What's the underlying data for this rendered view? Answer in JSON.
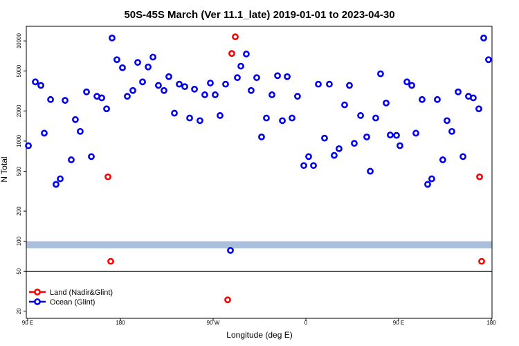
{
  "chart_data": {
    "type": "scatter",
    "title": "50S-45S March (Ver 11.1_late)   2019-01-01 to 2023-04-30",
    "x_label": "Longitude (deg E)",
    "y_label": "N Total",
    "log_y": true,
    "legend": "bottom-left",
    "xlim": [
      90,
      540
    ],
    "ylim": [
      17,
      14000
    ],
    "xticks": [
      {
        "value": 90,
        "label": "90 E"
      },
      180,
      {
        "value": 270,
        "label": "90 W"
      },
      {
        "value": 360,
        "label": "0"
      },
      {
        "value": 450,
        "label": "90 E"
      },
      {
        "value": 540,
        "label": "180"
      }
    ],
    "yticks": [
      20,
      50,
      100,
      200,
      500,
      1000,
      2000,
      5000,
      10000
    ],
    "band": {
      "from": 85,
      "to": 100,
      "color": "#a9bfdc"
    },
    "hline": 50,
    "series": [
      {
        "name": "Land (Nadir&Glint)",
        "color": "#ff0000",
        "x": [
          167.9,
          170.6,
          284.1,
          288.1,
          291.5,
          528.6,
          530.6
        ],
        "values": [
          440,
          63,
          26,
          7500,
          11000,
          440,
          63
        ]
      },
      {
        "name": "Ocean (Glint)",
        "color": "#0000ee",
        "x": [
          90.7,
          97.4,
          102.8,
          106.1,
          112.2,
          117.5,
          121.6,
          126.3,
          132.3,
          136.3,
          141.0,
          147.1,
          151.8,
          157.2,
          161.9,
          166.6,
          171.9,
          176.6,
          182.0,
          186.7,
          192.1,
          196.8,
          201.5,
          206.9,
          211.6,
          216.9,
          222.3,
          227.0,
          232.4,
          237.1,
          242.5,
          247.2,
          251.9,
          257.2,
          261.9,
          267.3,
          272.0,
          276.7,
          282.1,
          286.8,
          293.5,
          296.9,
          302.2,
          306.9,
          312.3,
          317.0,
          321.7,
          327.1,
          332.5,
          337.2,
          341.9,
          346.6,
          351.9,
          358.0,
          362.7,
          367.4,
          372.1,
          378.1,
          382.8,
          387.5,
          392.2,
          397.6,
          402.3,
          407.0,
          413.1,
          419.1,
          422.5,
          427.8,
          432.5,
          437.9,
          441.9,
          448.0,
          451.3,
          458.1,
          462.8,
          466.8,
          472.8,
          478.2,
          482.2,
          487.6,
          492.9,
          497.0,
          501.7,
          507.8,
          512.5,
          517.8,
          522.5,
          527.9,
          532.6,
          537.3
        ],
        "values": [
          900,
          3900,
          3600,
          1200,
          2600,
          370,
          420,
          2550,
          650,
          1640,
          1250,
          3100,
          700,
          2800,
          2700,
          2100,
          10700,
          6500,
          5400,
          2800,
          3200,
          6100,
          3900,
          5500,
          6900,
          3600,
          3200,
          4400,
          1900,
          3700,
          3500,
          1700,
          3300,
          1600,
          2900,
          3800,
          2900,
          1800,
          3700,
          81,
          4300,
          5600,
          7400,
          3200,
          4300,
          1100,
          1700,
          2900,
          4500,
          1600,
          4400,
          1700,
          2800,
          570,
          700,
          570,
          3700,
          1070,
          3700,
          720,
          840,
          2300,
          3600,
          950,
          1800,
          1100,
          500,
          1700,
          4700,
          2400,
          1150,
          1140,
          900,
          3900,
          3600,
          1200,
          2600,
          370,
          420,
          2600,
          650,
          1600,
          1250,
          3100,
          700,
          2800,
          2700,
          2100,
          10700,
          6500
        ]
      }
    ]
  }
}
